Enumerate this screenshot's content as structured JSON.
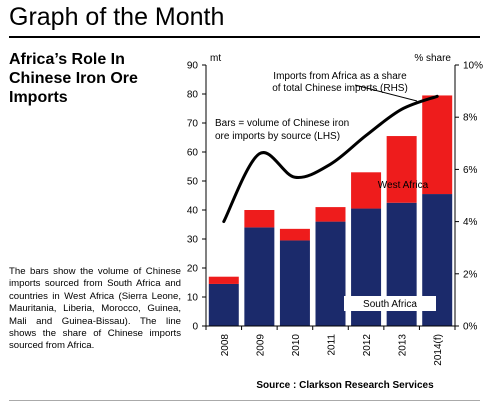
{
  "header": {
    "title": "Graph of the Month",
    "subtitle_lines": [
      "Africa’s Role In",
      "Chinese Iron Ore",
      "Imports"
    ]
  },
  "description": "The bars show the volume of Chinese imports sourced from South Africa and countries in West Africa (Sierra Leone, Mauritania, Liberia, Morocco, Guinea, Mali and Guinea-Bissau). The line shows the share of Chinese imports sourced from Africa.",
  "source": "Source : Clarkson Research Services",
  "chart_data": {
    "type": "bar",
    "stacked": true,
    "categories": [
      "2008",
      "2009",
      "2010",
      "2011",
      "2012",
      "2013",
      "2014(f)"
    ],
    "series": [
      {
        "name": "South Africa",
        "color": "#1b2a6b",
        "values": [
          14.5,
          34,
          29.5,
          36,
          40.5,
          42.5,
          45.5
        ]
      },
      {
        "name": "West Africa",
        "color": "#ee1c1c",
        "values": [
          2.5,
          6,
          4,
          5,
          12.5,
          23,
          34
        ]
      }
    ],
    "line": {
      "axis": "right",
      "color": "#000000",
      "values": [
        4.0,
        6.6,
        5.7,
        6.2,
        7.3,
        8.3,
        8.8
      ]
    },
    "y_left": {
      "label": "mt",
      "ylim": [
        0,
        90
      ],
      "ticks": [
        0,
        10,
        20,
        30,
        40,
        50,
        60,
        70,
        80,
        90
      ]
    },
    "y_right": {
      "label": "% share",
      "ylim": [
        0,
        10
      ],
      "ticks": [
        "0%",
        "2%",
        "4%",
        "6%",
        "8%",
        "10%"
      ]
    },
    "annotations": {
      "line_note": [
        "Imports from Africa as a share",
        "of total Chinese imports (RHS)"
      ],
      "bars_note": [
        "Bars = volume of Chinese iron",
        "ore imports by source (LHS)"
      ],
      "west_africa_label": "West Africa",
      "south_africa_label": "South Africa"
    },
    "grid": false
  }
}
